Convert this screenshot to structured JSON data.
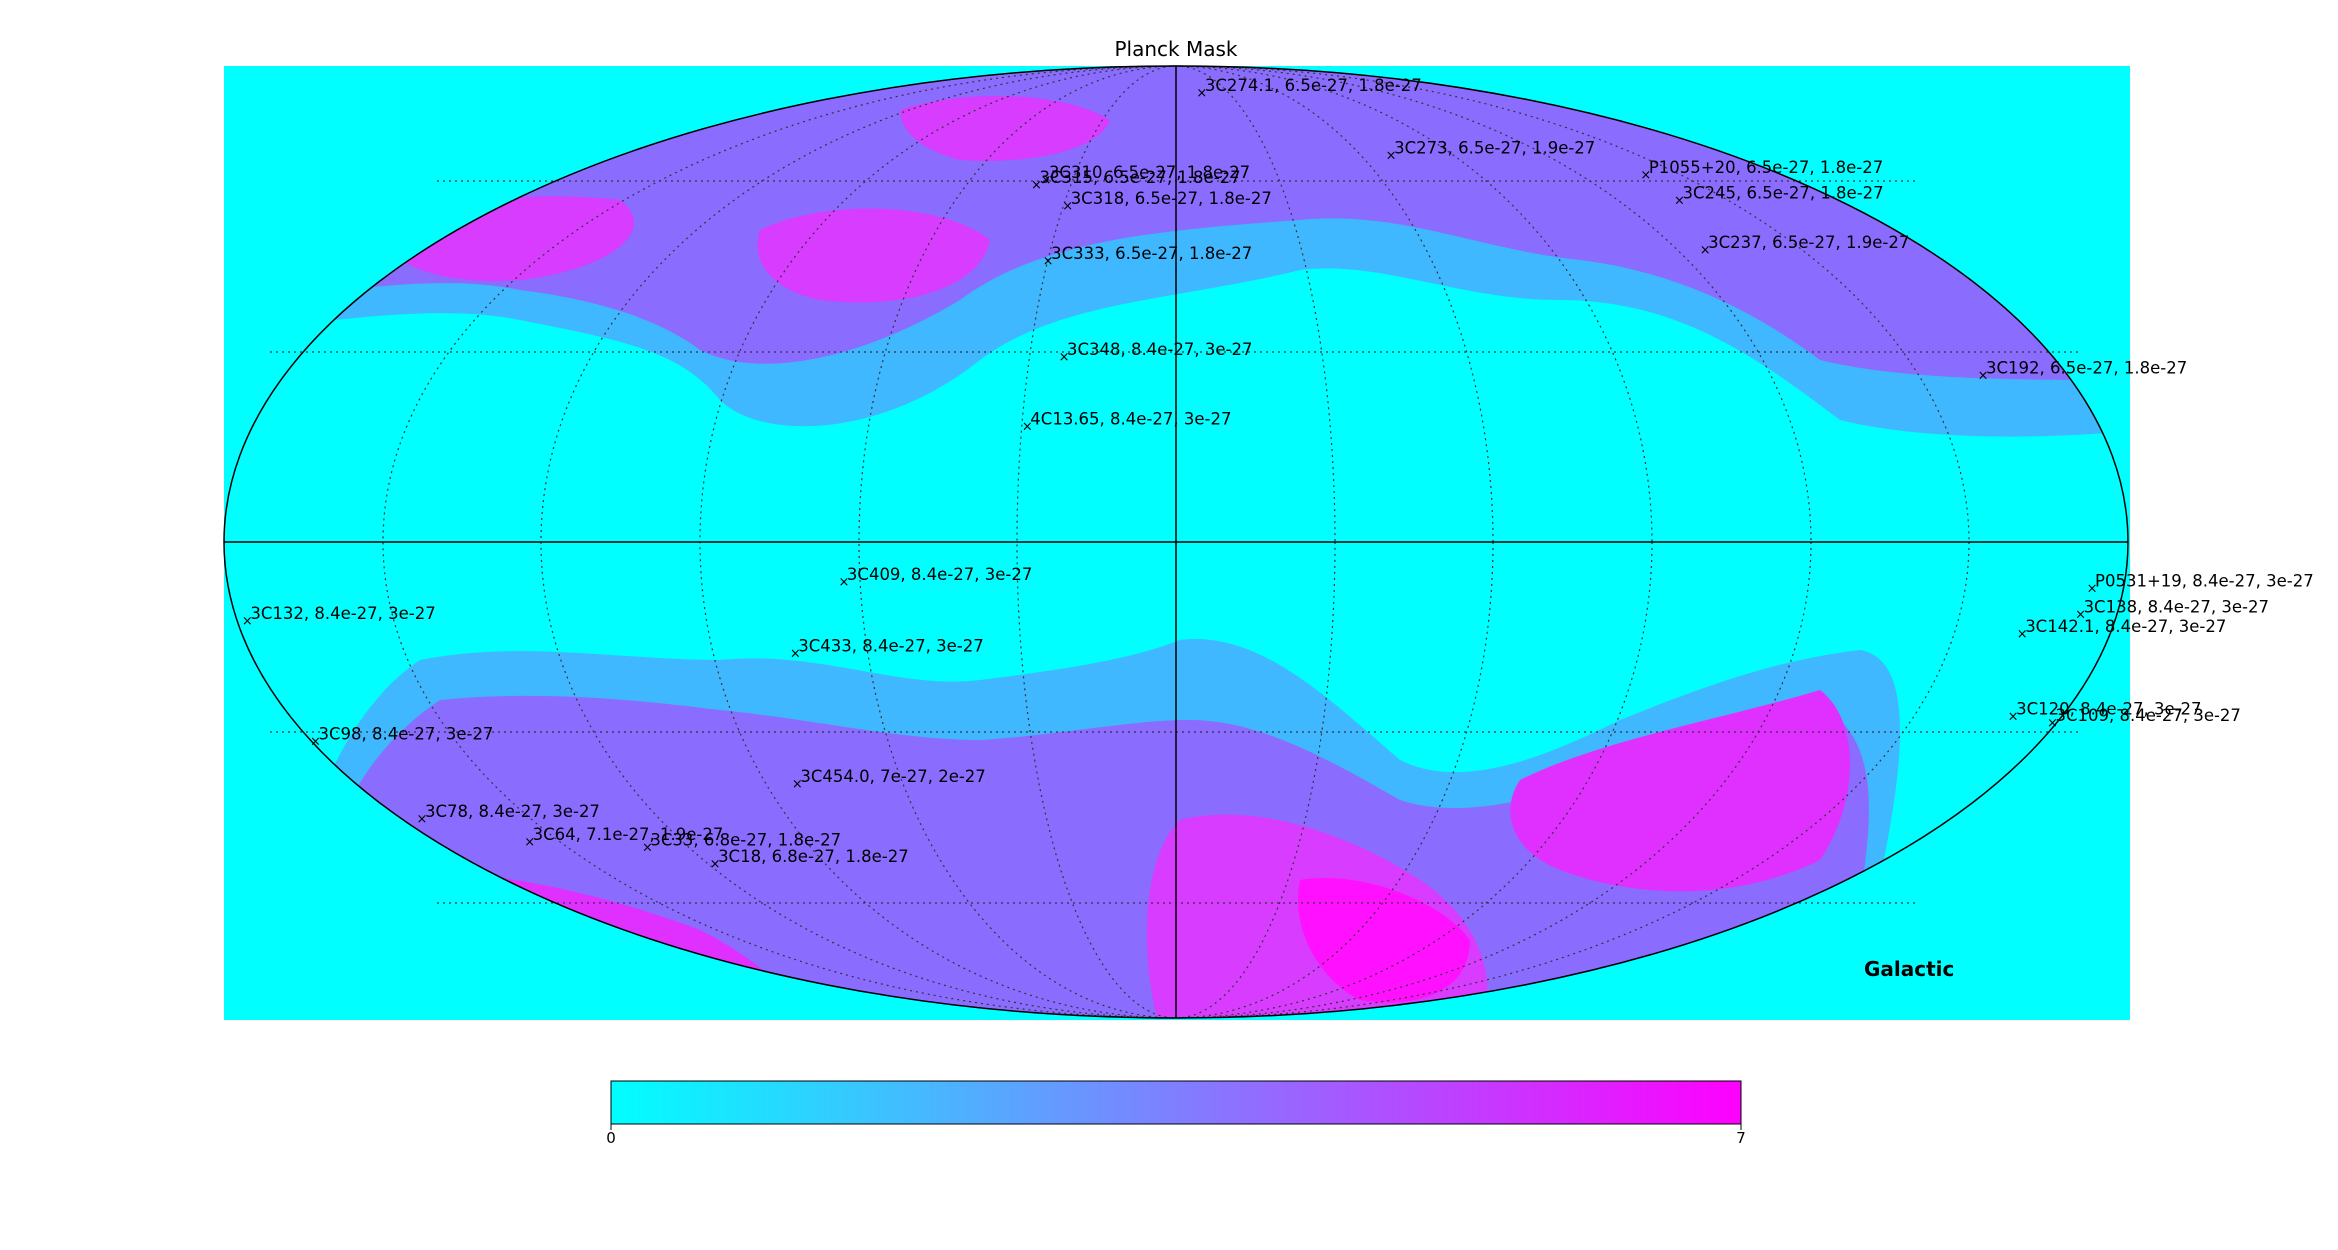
{
  "title": "Planck Mask",
  "coord_label": "Galactic",
  "colorbar": {
    "min": "0",
    "max": "7",
    "cmap": [
      "#00ffff",
      "#ff00ff"
    ]
  },
  "background_color": "#00ffff",
  "sources": [
    {
      "name": "3C274.1, 6.5e-27, 1.8e-27",
      "l": -15,
      "b": 80
    },
    {
      "name": "3C273, 6.5e-27, 1.9e-27",
      "l": -70,
      "b": 65
    },
    {
      "name": "P1055+20, 6.5e-27, 1.8e-27",
      "l": -140,
      "b": 61
    },
    {
      "name": "3C245, 6.5e-27, 1.8e-27",
      "l": -137,
      "b": 56
    },
    {
      "name": "3C237, 6.5e-27, 1.9e-27",
      "l": -127,
      "b": 47
    },
    {
      "name": "3C192, 6.5e-27, 1.8e-27",
      "l": -163,
      "b": 26
    },
    {
      "name": "3C310, 6.5e-27, 1.8e-27",
      "l": 38,
      "b": 60
    },
    {
      "name": "3C315, 6.5e-27, 1.8e-27",
      "l": 40,
      "b": 59
    },
    {
      "name": "3C318, 6.5e-27, 1.8e-27",
      "l": 29,
      "b": 55
    },
    {
      "name": "3C333, 6.5e-27, 1.8e-27",
      "l": 30,
      "b": 45
    },
    {
      "name": "3C348, 8.4e-27, 3e-27",
      "l": 23,
      "b": 29
    },
    {
      "name": "4C13.65, 8.4e-27, 3e-27",
      "l": 29,
      "b": 18
    },
    {
      "name": "3C409, 8.4e-27, 3e-27",
      "l": 63,
      "b": -6
    },
    {
      "name": "3C132, 8.4e-27, 3e-27",
      "l": 178,
      "b": -12
    },
    {
      "name": "3C433, 8.4e-27, 3e-27",
      "l": 74,
      "b": -17
    },
    {
      "name": "3C98, 8.4e-27, 3e-27",
      "l": 179,
      "b": -31
    },
    {
      "name": "3C454.0, 7e-27, 2e-27",
      "l": 83,
      "b": -38
    },
    {
      "name": "3C78, 8.4e-27, 3e-27",
      "l": 175,
      "b": -44
    },
    {
      "name": "3C64, 7.1e-27, 1.9e-27",
      "l": 157,
      "b": -48
    },
    {
      "name": "3C33, 6.8e-27, 1.8e-27",
      "l": 130,
      "b": -49
    },
    {
      "name": "3C18, 6.8e-27, 1.8e-27",
      "l": 118,
      "b": -52
    },
    {
      "name": "P0531+19, 8.4e-27, 3e-27",
      "l": -174,
      "b": -7
    },
    {
      "name": "3C138, 8.4e-27, 3e-27",
      "l": -173,
      "b": -11
    },
    {
      "name": "3C142.1, 8.4e-27, 3e-27",
      "l": -163,
      "b": -14
    },
    {
      "name": "3C120, 8.4e-27, 3e-27",
      "l": -170,
      "b": -27
    },
    {
      "name": "3C109, 8.4e-27, 3e-27",
      "l": -179,
      "b": -28
    }
  ]
}
